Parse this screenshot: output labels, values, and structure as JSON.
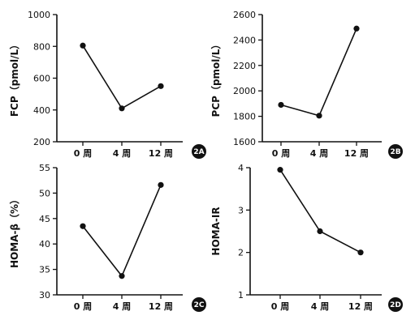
{
  "chart_data": [
    {
      "type": "line",
      "panel_label": "2A",
      "ylabel": "FCP（pmol/L）",
      "categories": [
        "0 周",
        "4 周",
        "12 周"
      ],
      "values": [
        805,
        410,
        550
      ],
      "ylim": [
        200,
        1000
      ],
      "yticks": [
        200,
        400,
        600,
        800,
        1000
      ],
      "grid": false,
      "color": "#111111"
    },
    {
      "type": "line",
      "panel_label": "2B",
      "ylabel": "PCP（pmol/L）",
      "categories": [
        "0 周",
        "4 周",
        "12 周"
      ],
      "values": [
        1890,
        1805,
        2490
      ],
      "ylim": [
        1600,
        2600
      ],
      "yticks": [
        1600,
        1800,
        2000,
        2200,
        2400,
        2600
      ],
      "grid": false,
      "color": "#111111"
    },
    {
      "type": "line",
      "panel_label": "2C",
      "ylabel": "HOMA-β（%）",
      "categories": [
        "0 周",
        "4 周",
        "12 周"
      ],
      "values": [
        43.5,
        33.7,
        51.6
      ],
      "ylim": [
        30,
        55
      ],
      "yticks": [
        30,
        35,
        40,
        45,
        50,
        55
      ],
      "grid": false,
      "color": "#111111"
    },
    {
      "type": "line",
      "panel_label": "2D",
      "ylabel": "HOMA-IR",
      "categories": [
        "0 周",
        "4 周",
        "12 周"
      ],
      "values": [
        3.95,
        2.5,
        2.0
      ],
      "ylim": [
        1,
        4
      ],
      "yticks": [
        1,
        2,
        3,
        4
      ],
      "grid": false,
      "color": "#111111"
    }
  ]
}
